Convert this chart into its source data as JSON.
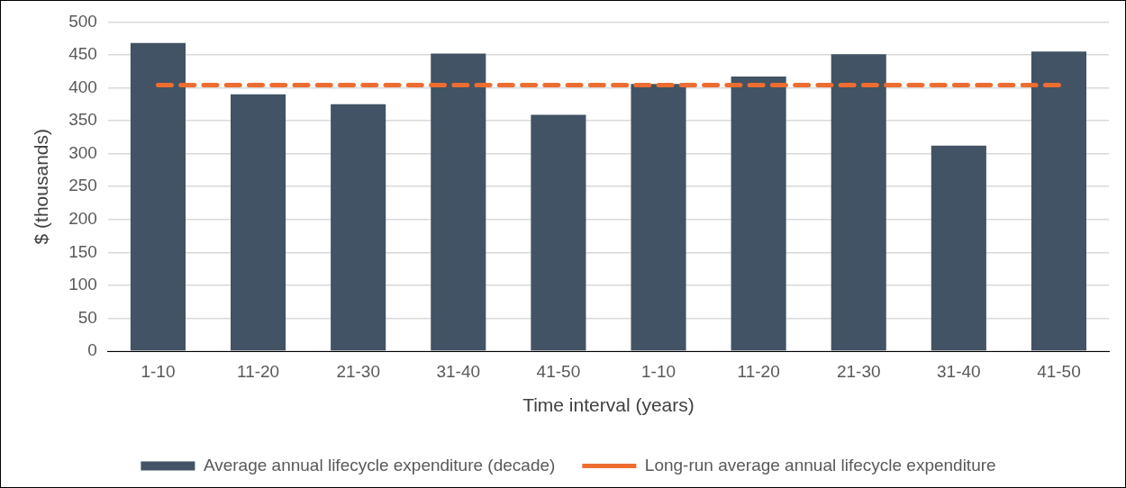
{
  "chart_data": {
    "type": "bar",
    "xlabel": "Time interval (years)",
    "ylabel": "$ (thousands)",
    "categories": [
      "1-10",
      "11-20",
      "21-30",
      "31-40",
      "41-50",
      "1-10",
      "11-20",
      "21-30",
      "31-40",
      "41-50"
    ],
    "series": [
      {
        "name": "Average annual lifecycle expenditure (decade)",
        "color": "#415364",
        "values": [
          468,
          390,
          375,
          452,
          359,
          406,
          417,
          451,
          312,
          455
        ]
      },
      {
        "name": "Long-run average annual lifecycle expenditure",
        "type": "line",
        "line_style": "dashed",
        "color": "#ed6d31",
        "values": [
          404,
          404,
          404,
          404,
          404,
          404,
          404,
          404,
          404,
          404
        ]
      }
    ],
    "ylim": [
      0,
      500
    ],
    "yticks": [
      0,
      50,
      100,
      150,
      200,
      250,
      300,
      350,
      400,
      450,
      500
    ],
    "grid": "y",
    "legend": "bottom",
    "marker": "none"
  }
}
